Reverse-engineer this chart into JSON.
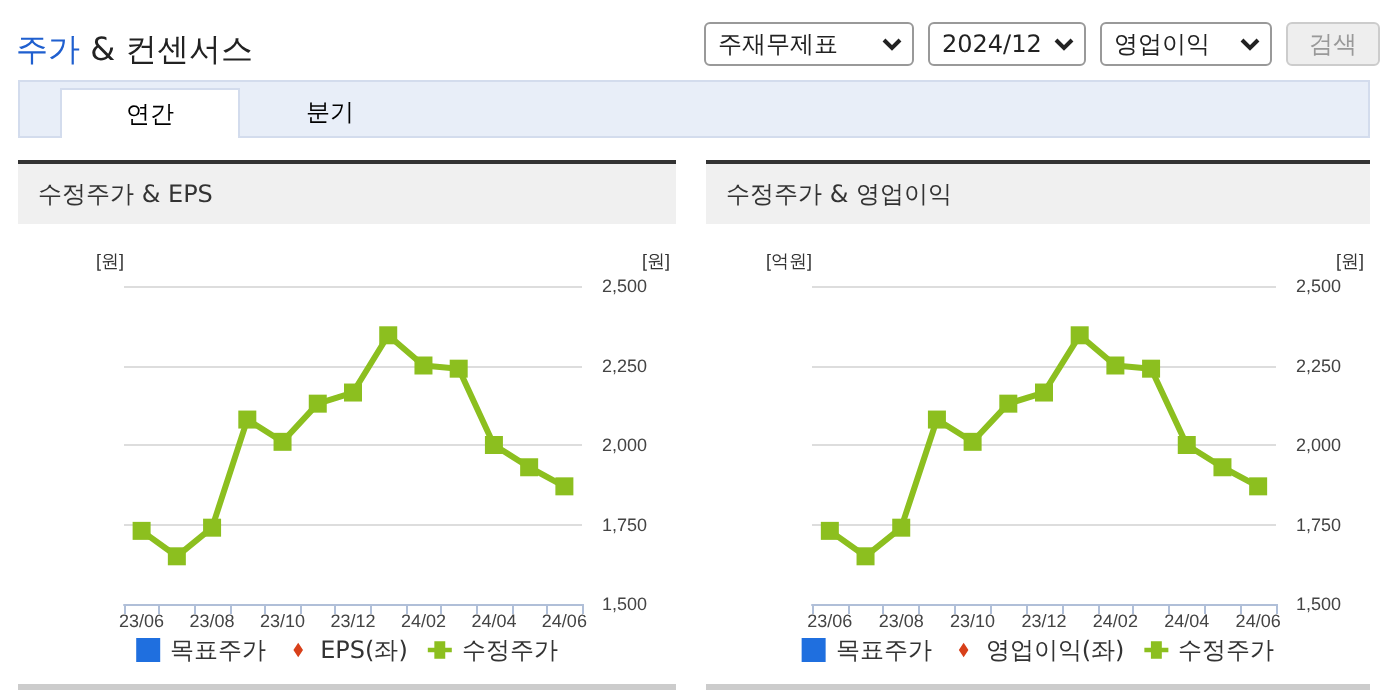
{
  "chart_data": [
    {
      "type": "other",
      "title": "주가 & 컨센서스",
      "annotations": [
        "주재무제표",
        "2024/12",
        "영업이익",
        "검색",
        "연간",
        "분기"
      ]
    },
    {
      "type": "line",
      "title": "수정주가 & EPS",
      "ylabel": "[원]",
      "y2label": "[원]",
      "categories": [
        "23/06",
        null,
        "23/08",
        null,
        "23/10",
        null,
        "23/12",
        null,
        "24/02",
        null,
        "24/04",
        null,
        "24/06"
      ],
      "y2lim": [
        1500,
        2500
      ],
      "y2ticks": [
        {
          "value": 1500,
          "label": "1,500"
        },
        {
          "value": 1750,
          "label": "1,750"
        },
        {
          "value": 2000,
          "label": "2,000"
        },
        {
          "value": 2250,
          "label": "2,250"
        },
        {
          "value": 2500,
          "label": "2,500"
        }
      ],
      "grid": "y",
      "legend": "bottom",
      "series": [
        {
          "name": "목표주가",
          "type": "bar",
          "color": "#1f6fdf",
          "values": [
            null,
            null,
            null,
            null,
            null,
            null,
            null,
            null,
            null,
            null,
            null,
            null,
            null
          ]
        },
        {
          "name": "EPS(좌)",
          "color": "#d8401a",
          "marker": "diamond",
          "values": [
            null,
            null,
            null,
            null,
            null,
            null,
            null,
            null,
            null,
            null,
            null,
            null,
            null
          ]
        },
        {
          "name": "수정주가",
          "color": "#8cbf1f",
          "marker": "square",
          "axis": "y2",
          "values": [
            1730,
            1650,
            1740,
            2080,
            2010,
            2130,
            2165,
            2345,
            2250,
            2240,
            2000,
            1930,
            1870
          ]
        }
      ]
    },
    {
      "type": "line",
      "title": "수정주가 & 영업이익",
      "ylabel": "[억원]",
      "y2label": "[원]",
      "categories": [
        "23/06",
        null,
        "23/08",
        null,
        "23/10",
        null,
        "23/12",
        null,
        "24/02",
        null,
        "24/04",
        null,
        "24/06"
      ],
      "y2lim": [
        1500,
        2500
      ],
      "y2ticks": [
        {
          "value": 1500,
          "label": "1,500"
        },
        {
          "value": 1750,
          "label": "1,750"
        },
        {
          "value": 2000,
          "label": "2,000"
        },
        {
          "value": 2250,
          "label": "2,250"
        },
        {
          "value": 2500,
          "label": "2,500"
        }
      ],
      "grid": "y",
      "legend": "bottom",
      "series": [
        {
          "name": "목표주가",
          "type": "bar",
          "color": "#1f6fdf",
          "values": [
            null,
            null,
            null,
            null,
            null,
            null,
            null,
            null,
            null,
            null,
            null,
            null,
            null
          ]
        },
        {
          "name": "영업이익(좌)",
          "color": "#d8401a",
          "marker": "diamond",
          "values": [
            null,
            null,
            null,
            null,
            null,
            null,
            null,
            null,
            null,
            null,
            null,
            null,
            null
          ]
        },
        {
          "name": "수정주가",
          "color": "#8cbf1f",
          "marker": "square",
          "axis": "y2",
          "values": [
            1730,
            1650,
            1740,
            2080,
            2010,
            2130,
            2165,
            2345,
            2250,
            2240,
            2000,
            1930,
            1870
          ]
        }
      ]
    }
  ]
}
